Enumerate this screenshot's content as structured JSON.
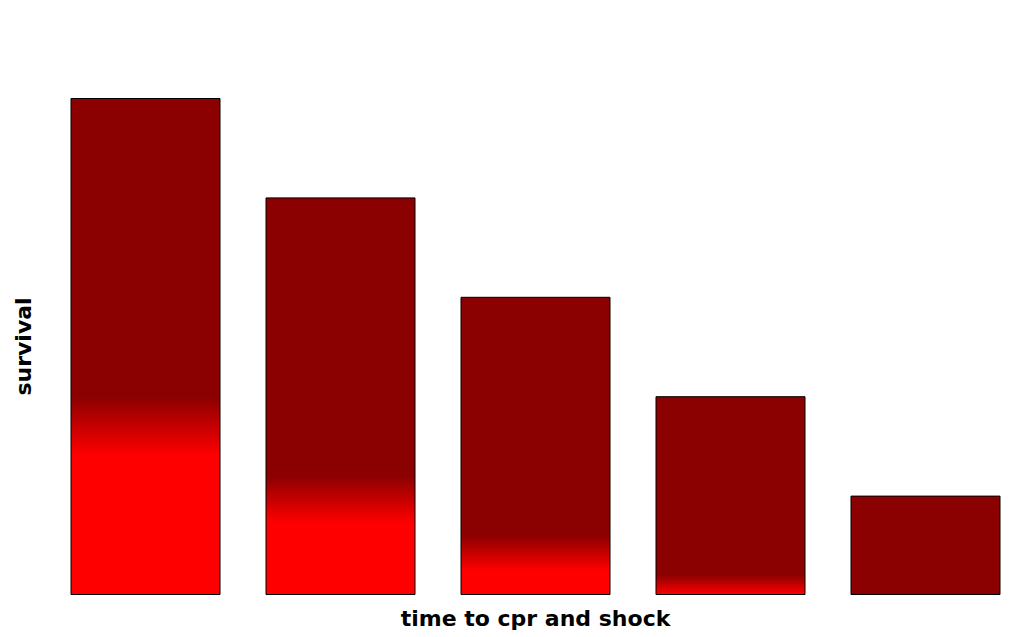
{
  "chart_data": {
    "type": "bar",
    "x_label": "time to cpr and shock",
    "y_label": "survival",
    "categories": [
      null,
      null,
      null,
      null,
      null
    ],
    "values": [
      100,
      80,
      60,
      40,
      20
    ],
    "color": "#8b0000",
    "ylim": [
      0,
      100
    ],
    "tick_labels": false,
    "grid": false
  }
}
